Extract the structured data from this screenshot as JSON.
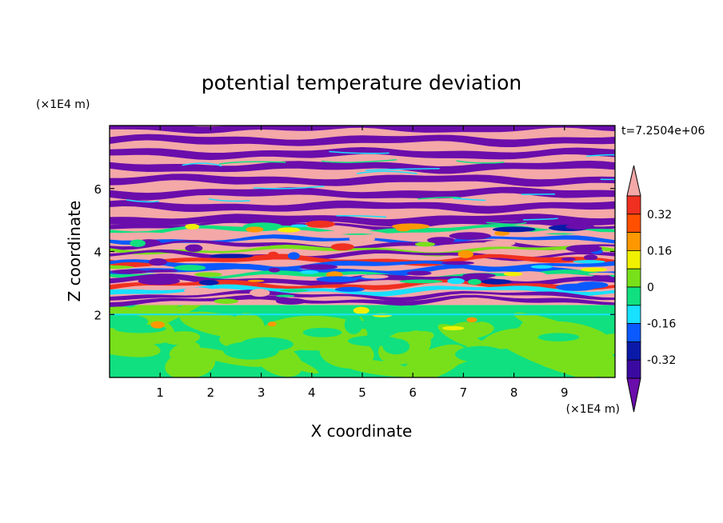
{
  "chart_data": {
    "type": "heatmap",
    "title": "potential temperature deviation",
    "xlabel": "X coordinate",
    "ylabel": "Z coordinate",
    "x_unit": "(×1E4 m)",
    "y_unit": "(×1E4 m)",
    "time_label": "t=7.2504e+06",
    "xlim": [
      0,
      10
    ],
    "ylim": [
      0,
      8
    ],
    "x_ticks": [
      "1",
      "2",
      "3",
      "4",
      "5",
      "6",
      "7",
      "8",
      "9"
    ],
    "y_ticks": [
      "2",
      "4",
      "6"
    ],
    "colorbar": {
      "levels": [
        -0.4,
        -0.32,
        -0.24,
        -0.16,
        -0.08,
        0,
        0.08,
        0.16,
        0.24,
        0.32,
        0.4
      ],
      "labels": [
        "0.32",
        "0.16",
        "0",
        "-0.16",
        "-0.32"
      ],
      "colors": [
        "#6a0dab",
        "#3a0aa0",
        "#0a1aa8",
        "#0a5aff",
        "#18e0ff",
        "#10e080",
        "#78e01a",
        "#f0f000",
        "#ff9800",
        "#ff5000",
        "#f03020",
        "#f4a8a8"
      ]
    },
    "layers": [
      {
        "z_range": [
          0,
          2.3
        ],
        "description_colors": [
          "#10e080",
          "#78e01a"
        ]
      },
      {
        "z_range": [
          2.3,
          5.0
        ],
        "description_colors": [
          "#f4a8a8",
          "#6a0dab",
          "#0a5aff",
          "#18e0ff",
          "#f0f000",
          "#ff9800",
          "#f03020"
        ]
      },
      {
        "z_range": [
          5.0,
          8.0
        ],
        "description_colors": [
          "#f4a8a8",
          "#6a0dab"
        ]
      }
    ]
  }
}
